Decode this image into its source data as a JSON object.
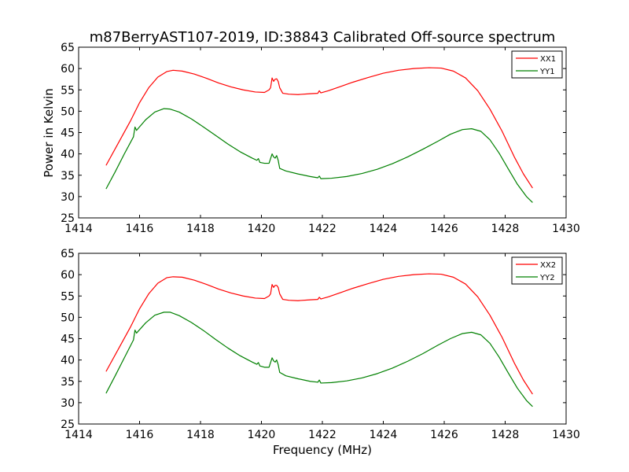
{
  "chart_data": {
    "type": "line",
    "title": "m87BerryAST107-2019, ID:38843 Calibrated Off-source spectrum",
    "xlabel": "Frequency (MHz)",
    "ylabel": "Power in Kelvin",
    "colors": {
      "red": "#ff0000",
      "green": "#008000"
    },
    "panels": [
      {
        "xlim": [
          1414,
          1430
        ],
        "ylim": [
          25,
          65
        ],
        "xticks": [
          "1414",
          "1416",
          "1418",
          "1420",
          "1422",
          "1424",
          "1426",
          "1428",
          "1430"
        ],
        "yticks": [
          "25",
          "30",
          "35",
          "40",
          "45",
          "50",
          "55",
          "60",
          "65"
        ],
        "legend": "top-right",
        "series": [
          {
            "name": "XX1",
            "color": "red",
            "x": [
              1414.9,
              1415.3,
              1415.7,
              1416.0,
              1416.3,
              1416.6,
              1416.9,
              1417.1,
              1417.4,
              1417.8,
              1418.2,
              1418.6,
              1419.0,
              1419.4,
              1419.8,
              1420.1,
              1420.25,
              1420.3,
              1420.35,
              1420.4,
              1420.45,
              1420.5,
              1420.55,
              1420.6,
              1420.7,
              1420.9,
              1421.2,
              1421.6,
              1421.85,
              1421.9,
              1421.95,
              1422.2,
              1422.6,
              1423.0,
              1423.5,
              1424.0,
              1424.5,
              1425.0,
              1425.5,
              1425.9,
              1426.3,
              1426.7,
              1427.1,
              1427.5,
              1427.9,
              1428.3,
              1428.6,
              1428.9
            ],
            "y": [
              37.3,
              42.5,
              47.7,
              52.0,
              55.5,
              58.0,
              59.3,
              59.6,
              59.4,
              58.7,
              57.7,
              56.6,
              55.7,
              55.0,
              54.5,
              54.4,
              55.0,
              55.5,
              57.8,
              57.0,
              57.5,
              57.6,
              57.0,
              55.5,
              54.2,
              54.0,
              53.9,
              54.1,
              54.2,
              54.8,
              54.3,
              54.8,
              55.8,
              56.8,
              57.9,
              58.9,
              59.6,
              60.0,
              60.2,
              60.1,
              59.4,
              57.8,
              54.8,
              50.5,
              45.3,
              39.3,
              35.3,
              32.0
            ]
          },
          {
            "name": "YY1",
            "color": "green",
            "x": [
              1414.9,
              1415.2,
              1415.5,
              1415.8,
              1415.85,
              1415.9,
              1416.2,
              1416.5,
              1416.8,
              1417.0,
              1417.3,
              1417.7,
              1418.1,
              1418.5,
              1418.9,
              1419.3,
              1419.7,
              1419.85,
              1419.9,
              1419.95,
              1420.1,
              1420.25,
              1420.35,
              1420.4,
              1420.45,
              1420.5,
              1420.55,
              1420.6,
              1420.8,
              1421.2,
              1421.6,
              1421.85,
              1421.9,
              1421.95,
              1422.3,
              1422.8,
              1423.3,
              1423.8,
              1424.3,
              1424.8,
              1425.3,
              1425.8,
              1426.2,
              1426.6,
              1426.9,
              1427.2,
              1427.5,
              1427.8,
              1428.1,
              1428.4,
              1428.7,
              1428.9
            ],
            "y": [
              31.8,
              35.8,
              40.0,
              44.0,
              46.3,
              45.5,
              48.0,
              49.8,
              50.6,
              50.5,
              49.8,
              48.2,
              46.3,
              44.3,
              42.3,
              40.5,
              39.0,
              38.5,
              38.9,
              38.0,
              37.8,
              37.8,
              40.0,
              39.3,
              39.0,
              39.6,
              38.5,
              36.6,
              36.0,
              35.3,
              34.7,
              34.4,
              34.8,
              34.2,
              34.3,
              34.7,
              35.4,
              36.4,
              37.7,
              39.3,
              41.1,
              43.0,
              44.6,
              45.7,
              45.9,
              45.3,
              43.3,
              40.2,
              36.5,
              32.9,
              30.0,
              28.6
            ]
          }
        ]
      },
      {
        "xlim": [
          1414,
          1430
        ],
        "ylim": [
          25,
          65
        ],
        "xticks": [
          "1414",
          "1416",
          "1418",
          "1420",
          "1422",
          "1424",
          "1426",
          "1428",
          "1430"
        ],
        "yticks": [
          "25",
          "30",
          "35",
          "40",
          "45",
          "50",
          "55",
          "60",
          "65"
        ],
        "legend": "top-right",
        "series": [
          {
            "name": "XX2",
            "color": "red",
            "x": [
              1414.9,
              1415.3,
              1415.7,
              1416.0,
              1416.3,
              1416.6,
              1416.9,
              1417.1,
              1417.4,
              1417.8,
              1418.2,
              1418.6,
              1419.0,
              1419.4,
              1419.8,
              1420.1,
              1420.25,
              1420.3,
              1420.35,
              1420.4,
              1420.45,
              1420.5,
              1420.55,
              1420.6,
              1420.7,
              1420.9,
              1421.2,
              1421.6,
              1421.85,
              1421.9,
              1421.95,
              1422.2,
              1422.6,
              1423.0,
              1423.5,
              1424.0,
              1424.5,
              1425.0,
              1425.5,
              1425.9,
              1426.3,
              1426.7,
              1427.1,
              1427.5,
              1427.9,
              1428.3,
              1428.6,
              1428.9
            ],
            "y": [
              37.3,
              42.5,
              47.7,
              52.0,
              55.5,
              58.0,
              59.3,
              59.5,
              59.4,
              58.7,
              57.7,
              56.6,
              55.7,
              55.0,
              54.5,
              54.4,
              55.0,
              55.5,
              57.7,
              57.0,
              57.5,
              57.5,
              57.0,
              55.5,
              54.2,
              54.0,
              53.9,
              54.1,
              54.2,
              54.7,
              54.3,
              54.8,
              55.8,
              56.8,
              57.9,
              58.9,
              59.6,
              60.0,
              60.2,
              60.1,
              59.4,
              57.8,
              54.8,
              50.5,
              45.3,
              39.3,
              35.3,
              32.0
            ]
          },
          {
            "name": "YY2",
            "color": "green",
            "x": [
              1414.9,
              1415.2,
              1415.5,
              1415.8,
              1415.85,
              1415.9,
              1416.2,
              1416.5,
              1416.8,
              1417.0,
              1417.3,
              1417.7,
              1418.1,
              1418.5,
              1418.9,
              1419.3,
              1419.7,
              1419.85,
              1419.9,
              1419.95,
              1420.1,
              1420.25,
              1420.35,
              1420.4,
              1420.45,
              1420.5,
              1420.55,
              1420.6,
              1420.8,
              1421.2,
              1421.6,
              1421.85,
              1421.9,
              1421.95,
              1422.3,
              1422.8,
              1423.3,
              1423.8,
              1424.3,
              1424.8,
              1425.3,
              1425.8,
              1426.2,
              1426.6,
              1426.9,
              1427.2,
              1427.5,
              1427.8,
              1428.1,
              1428.4,
              1428.7,
              1428.9
            ],
            "y": [
              32.2,
              36.3,
              40.5,
              44.7,
              47.0,
              46.3,
              48.7,
              50.5,
              51.2,
              51.2,
              50.4,
              48.8,
              46.9,
              44.8,
              42.8,
              41.0,
              39.5,
              39.0,
              39.4,
              38.6,
              38.3,
              38.3,
              40.5,
              39.8,
              39.5,
              40.0,
              38.9,
              37.1,
              36.3,
              35.6,
              35.0,
              34.8,
              35.3,
              34.6,
              34.7,
              35.1,
              35.8,
              36.8,
              38.1,
              39.7,
              41.5,
              43.5,
              45.0,
              46.2,
              46.5,
              45.9,
              43.9,
              40.7,
              37.0,
              33.4,
              30.5,
              29.1
            ]
          }
        ]
      }
    ]
  }
}
